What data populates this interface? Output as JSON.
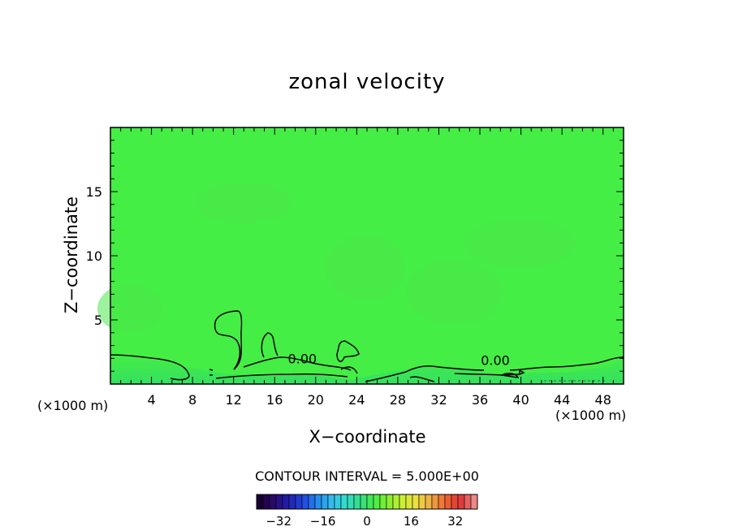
{
  "chart_data": {
    "type": "heatmap",
    "title": "zonal velocity",
    "xlabel": "X−coordinate",
    "ylabel": "Z−coordinate",
    "x_unit_label": "(×1000 m)",
    "xlim": [
      0,
      50
    ],
    "ylim": [
      0,
      20
    ],
    "x_ticks": [
      4,
      8,
      12,
      16,
      20,
      24,
      28,
      32,
      36,
      40,
      44,
      48
    ],
    "y_ticks": [
      5,
      10,
      15
    ],
    "field_color": "#44ee44",
    "near_surface_color": "#33dd66",
    "contour_labels": [
      {
        "text": "0.00",
        "x": 18.7,
        "y": 1.6
      },
      {
        "text": "0.00",
        "x": 37.5,
        "y": 1.5
      }
    ],
    "contour_interval_label": "CONTOUR INTERVAL = 5.000E+00",
    "colorbar": {
      "ticks": [
        "−32",
        "−16",
        "0",
        "16",
        "32"
      ],
      "tick_values": [
        -32,
        -16,
        0,
        16,
        32
      ],
      "range": [
        -40,
        40
      ],
      "colors": [
        "#1a0033",
        "#2a0a6e",
        "#1f1fb0",
        "#2244dd",
        "#2288ee",
        "#33bbee",
        "#33ddcc",
        "#33dd88",
        "#44ee44",
        "#88ee33",
        "#ccee33",
        "#eedd44",
        "#eeaa44",
        "#ee6633",
        "#dd3333",
        "#ee8888"
      ]
    }
  }
}
